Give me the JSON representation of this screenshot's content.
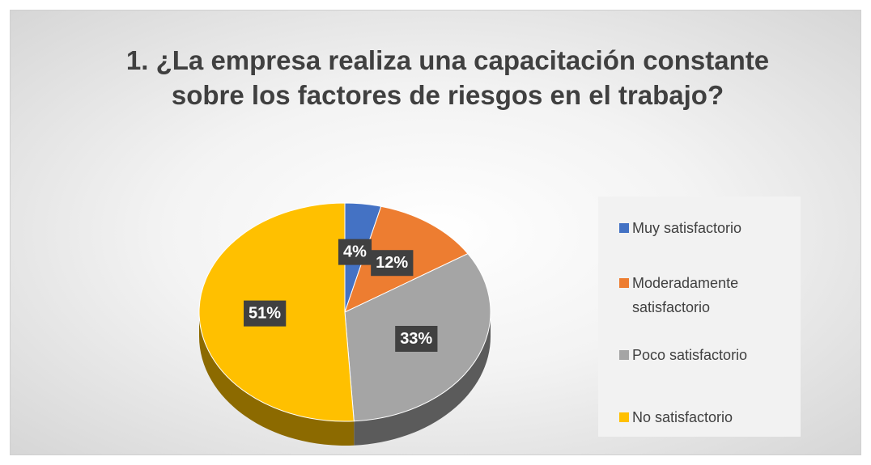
{
  "chart_data": {
    "type": "pie",
    "title": "1. ¿La empresa realiza una capacitación constante sobre los factores de riesgos en el trabajo?",
    "categories": [
      "Muy satisfactorio",
      "Moderadamente satisfactorio",
      "Poco satisfactorio",
      "No satisfactorio"
    ],
    "values": [
      4,
      12,
      33,
      51
    ],
    "value_labels": [
      "4%",
      "12%",
      "33%",
      "51%"
    ],
    "colors": [
      "#4472c4",
      "#ed7d31",
      "#a5a5a5",
      "#ffc000"
    ],
    "legend": "right"
  }
}
